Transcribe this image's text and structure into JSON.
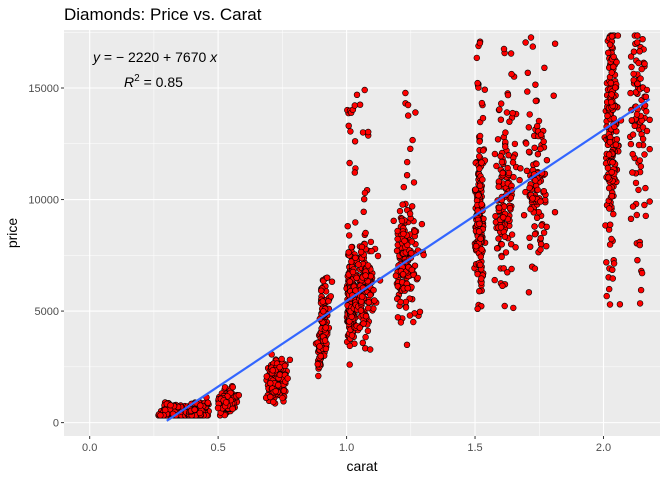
{
  "chart_data": {
    "type": "scatter",
    "title": "Diamonds: Price vs. Carat",
    "xlabel": "carat",
    "ylabel": "price",
    "xlim": [
      -0.1,
      2.22
    ],
    "ylim": [
      -600,
      17600
    ],
    "x_ticks": [
      0.0,
      0.5,
      1.0,
      1.5,
      2.0
    ],
    "x_tick_labels": [
      "0.0",
      "0.5",
      "1.0",
      "1.5",
      "2.0"
    ],
    "y_ticks": [
      0,
      5000,
      10000,
      15000
    ],
    "y_tick_labels": [
      "0",
      "5000",
      "10000",
      "15000"
    ],
    "grid": true,
    "point_fill": "#ff0000",
    "point_stroke": "#000000",
    "line_color": "#3366ff",
    "panel_bg": "#ebebeb",
    "grid_color": "#ffffff",
    "regression": {
      "intercept": -2220,
      "slope": 7670,
      "x_range": [
        0.3,
        2.18
      ],
      "equation_text": "y = −2220 + 7670 x",
      "r2": 0.85
    },
    "annotations": {
      "equation": {
        "y_label": "y",
        "rhs": " = − 2220 + 7670 ",
        "x_label": "x"
      },
      "r2": {
        "label": "R",
        "sup": "2",
        "value": " = 0.85"
      }
    }
  }
}
